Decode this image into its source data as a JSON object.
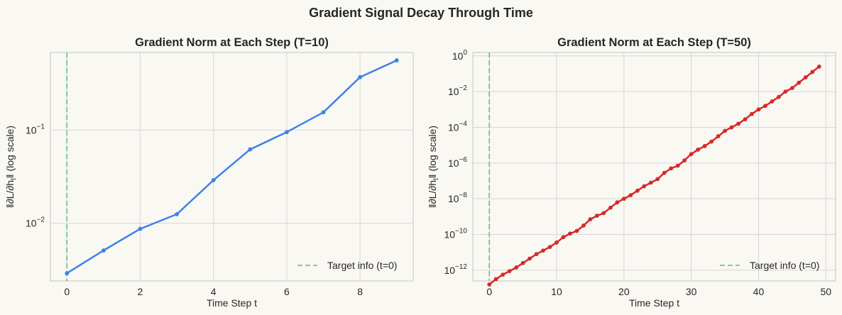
{
  "figure": {
    "suptitle": "Gradient Signal Decay Through Time",
    "background": "#faf8f2"
  },
  "chart_data": [
    {
      "type": "line",
      "title": "Gradient Norm at Each Step (T=10)",
      "xlabel": "Time Step t",
      "ylabel": "‖∂L/∂h",
      "ylabel_sub": "t",
      "ylabel_suffix": "‖ (log scale)",
      "yscale": "log",
      "xlim": [
        -0.45,
        9.45
      ],
      "ylim": [
        0.0024,
        0.68
      ],
      "x_ticks": [
        0,
        2,
        4,
        6,
        8
      ],
      "y_ticks": [
        {
          "value": 0.1,
          "exp": "−1"
        },
        {
          "value": 0.01,
          "exp": "−2"
        }
      ],
      "grid": true,
      "legend_position": "bottom-right",
      "series": [
        {
          "color": "#3b82e8",
          "x": [
            0,
            1,
            2,
            3,
            4,
            5,
            6,
            7,
            8,
            9
          ],
          "values": [
            0.0029,
            0.0051,
            0.0087,
            0.0125,
            0.029,
            0.062,
            0.095,
            0.155,
            0.37,
            0.56
          ]
        }
      ],
      "vline": {
        "x": 0,
        "label": "Target info (t=0)",
        "color": "#6cc49c"
      }
    },
    {
      "type": "line",
      "title": "Gradient Norm at Each Step (T=50)",
      "xlabel": "Time Step t",
      "ylabel": "‖∂L/∂h",
      "ylabel_sub": "t",
      "ylabel_suffix": "‖ (log scale)",
      "yscale": "log",
      "xlim": [
        -2.45,
        51.45
      ],
      "ylim": [
        2.5e-13,
        1.55
      ],
      "x_ticks": [
        0,
        10,
        20,
        30,
        40,
        50
      ],
      "y_ticks": [
        {
          "value": 1,
          "exp": "0"
        },
        {
          "value": 0.01,
          "exp": "−2"
        },
        {
          "value": 0.0001,
          "exp": "−4"
        },
        {
          "value": 1e-06,
          "exp": "−6"
        },
        {
          "value": 1e-08,
          "exp": "−8"
        },
        {
          "value": 1e-10,
          "exp": "−10"
        },
        {
          "value": 1e-12,
          "exp": "−12"
        }
      ],
      "grid": true,
      "legend_position": "bottom-right",
      "series": [
        {
          "color": "#d42a2a",
          "x": [
            0,
            1,
            2,
            3,
            4,
            5,
            6,
            7,
            8,
            9,
            10,
            11,
            12,
            13,
            14,
            15,
            16,
            17,
            18,
            19,
            20,
            21,
            22,
            23,
            24,
            25,
            26,
            27,
            28,
            29,
            30,
            31,
            32,
            33,
            34,
            35,
            36,
            37,
            38,
            39,
            40,
            41,
            42,
            43,
            44,
            45,
            46,
            47,
            48,
            49
          ],
          "log10_values": [
            -12.8,
            -12.5,
            -12.25,
            -12.05,
            -11.85,
            -11.6,
            -11.35,
            -11.1,
            -10.9,
            -10.7,
            -10.45,
            -10.15,
            -9.95,
            -9.8,
            -9.5,
            -9.15,
            -8.95,
            -8.8,
            -8.5,
            -8.2,
            -8.0,
            -7.8,
            -7.55,
            -7.3,
            -7.1,
            -6.9,
            -6.55,
            -6.3,
            -6.15,
            -5.85,
            -5.5,
            -5.25,
            -5.05,
            -4.8,
            -4.5,
            -4.2,
            -4.0,
            -3.8,
            -3.55,
            -3.25,
            -3.0,
            -2.8,
            -2.55,
            -2.3,
            -2.0,
            -1.8,
            -1.5,
            -1.2,
            -0.9,
            -0.6
          ]
        }
      ],
      "vline": {
        "x": 0,
        "label": "Target info (t=0)",
        "color": "#6cc49c"
      }
    }
  ]
}
